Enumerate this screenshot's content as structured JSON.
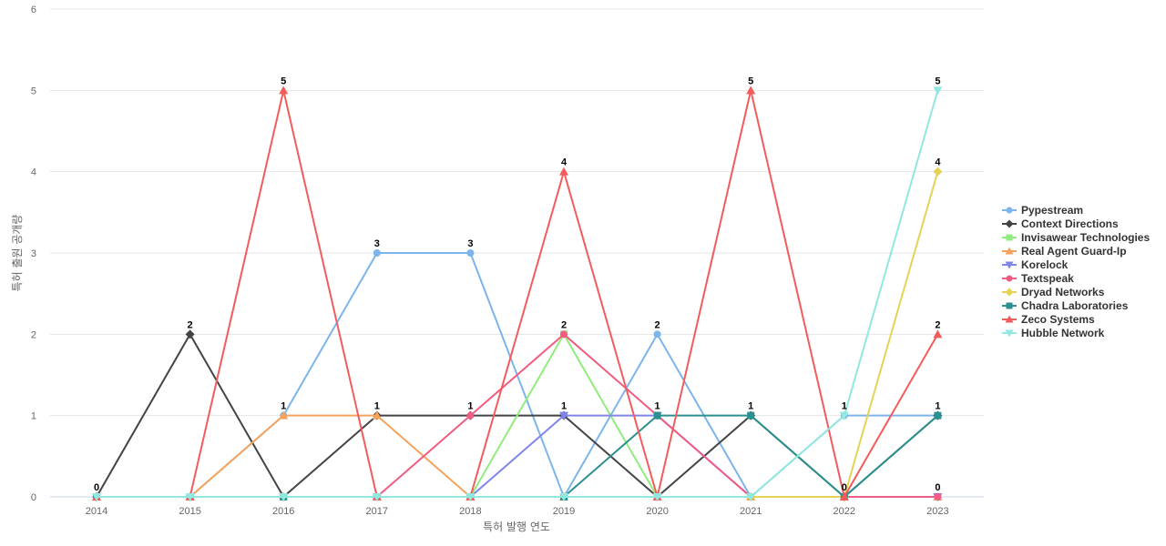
{
  "chart_data": {
    "type": "line",
    "xlabel": "특허 발행 연도",
    "ylabel": "특허 출원 공개량",
    "ylim": [
      0,
      6
    ],
    "yticks": [
      0,
      1,
      2,
      3,
      4,
      5,
      6
    ],
    "grid": true,
    "legend_position": "right",
    "data_labels": true,
    "x": [
      "2014",
      "2015",
      "2016",
      "2017",
      "2018",
      "2019",
      "2020",
      "2021",
      "2022",
      "2023"
    ],
    "series": [
      {
        "name": "Pypestream",
        "color": "#7cb5ec",
        "marker": "circle",
        "values": [
          0,
          0,
          1,
          3,
          3,
          0,
          2,
          0,
          1,
          1
        ]
      },
      {
        "name": "Context Directions",
        "color": "#434348",
        "marker": "diamond",
        "values": [
          0,
          2,
          0,
          1,
          1,
          1,
          0,
          1,
          0,
          1
        ]
      },
      {
        "name": "Invisawear Technologies",
        "color": "#90ed7d",
        "marker": "square",
        "values": [
          0,
          0,
          0,
          0,
          0,
          2,
          0,
          0,
          0,
          0
        ]
      },
      {
        "name": "Real Agent Guard-Ip",
        "color": "#f7a35c",
        "marker": "triangle",
        "values": [
          0,
          0,
          1,
          1,
          0,
          0,
          0,
          0,
          0,
          0
        ]
      },
      {
        "name": "Korelock",
        "color": "#8085e9",
        "marker": "triangle-down",
        "values": [
          0,
          0,
          0,
          0,
          0,
          1,
          1,
          0,
          0,
          0
        ]
      },
      {
        "name": "Textspeak",
        "color": "#f15c80",
        "marker": "circle",
        "values": [
          0,
          0,
          0,
          0,
          1,
          2,
          1,
          0,
          0,
          0
        ]
      },
      {
        "name": "Dryad Networks",
        "color": "#e4d354",
        "marker": "diamond",
        "values": [
          0,
          0,
          0,
          0,
          0,
          0,
          0,
          0,
          0,
          4
        ]
      },
      {
        "name": "Chadra Laboratories",
        "color": "#2b908f",
        "marker": "square",
        "values": [
          0,
          0,
          0,
          0,
          0,
          0,
          1,
          1,
          0,
          1
        ]
      },
      {
        "name": "Zeco Systems",
        "color": "#f45b5b",
        "marker": "triangle",
        "values": [
          0,
          0,
          5,
          0,
          0,
          4,
          0,
          5,
          0,
          2
        ]
      },
      {
        "name": "Hubble Network",
        "color": "#91e8e1",
        "marker": "triangle-down",
        "values": [
          0,
          0,
          0,
          0,
          0,
          0,
          0,
          0,
          1,
          5
        ]
      }
    ]
  }
}
